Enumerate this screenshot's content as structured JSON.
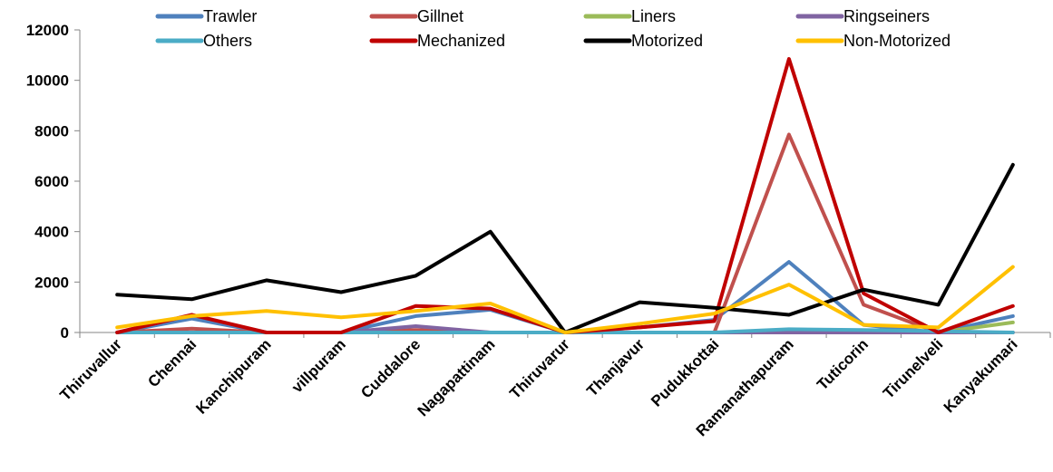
{
  "chart_data": {
    "type": "line",
    "title": "",
    "xlabel": "",
    "ylabel": "",
    "ylim": [
      0,
      12000
    ],
    "yticks": [
      "0",
      "2000",
      "4000",
      "6000",
      "8000",
      "10000",
      "12000"
    ],
    "grid": false,
    "legend_position": "top",
    "categories": [
      "Thiruvallur",
      "Chennai",
      "Kanchipuram",
      "villpuram",
      "Cuddalore",
      "Nagapattinam",
      "Thiruvarur",
      "Thanjavur",
      "Pudukkottai",
      "Ramanathapuram",
      "Tuticorin",
      "Tirunelveli",
      "Kanyakumari"
    ],
    "series": [
      {
        "name": "Trawler",
        "color": "#4F81BD",
        "values": [
          0,
          550,
          0,
          0,
          650,
          900,
          0,
          200,
          500,
          2800,
          300,
          0,
          650
        ]
      },
      {
        "name": "Gillnet",
        "color": "#C0504D",
        "values": [
          0,
          150,
          0,
          0,
          100,
          0,
          0,
          0,
          0,
          7850,
          1100,
          0,
          0
        ]
      },
      {
        "name": "Liners",
        "color": "#9BBB59",
        "values": [
          0,
          0,
          0,
          0,
          0,
          0,
          0,
          0,
          0,
          0,
          0,
          0,
          400
        ]
      },
      {
        "name": "Ringseiners",
        "color": "#8064A2",
        "values": [
          0,
          0,
          0,
          0,
          250,
          0,
          0,
          0,
          0,
          0,
          0,
          0,
          0
        ]
      },
      {
        "name": "Others",
        "color": "#4BACC6",
        "values": [
          0,
          0,
          0,
          0,
          0,
          0,
          0,
          0,
          0,
          130,
          100,
          50,
          0
        ]
      },
      {
        "name": "Mechanized",
        "color": "#C00000",
        "values": [
          0,
          700,
          0,
          0,
          1050,
          950,
          0,
          200,
          450,
          10850,
          1550,
          0,
          1050
        ]
      },
      {
        "name": "Motorized",
        "color": "#000000",
        "values": [
          1500,
          1320,
          2070,
          1600,
          2250,
          4000,
          0,
          1200,
          980,
          700,
          1700,
          1100,
          6650
        ]
      },
      {
        "name": "Non-Motorized",
        "color": "#FFC000",
        "values": [
          200,
          650,
          850,
          600,
          850,
          1150,
          0,
          350,
          750,
          1900,
          300,
          200,
          2600
        ]
      }
    ]
  }
}
